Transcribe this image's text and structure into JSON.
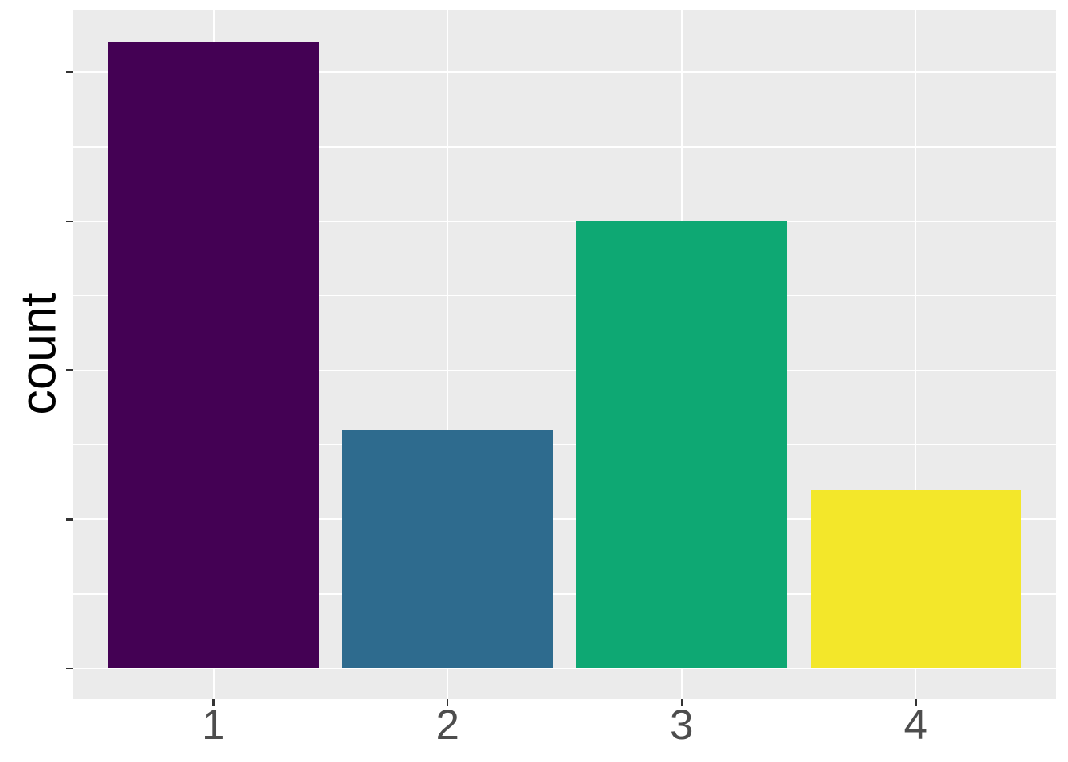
{
  "chart_data": {
    "type": "bar",
    "title": "",
    "xlabel": "",
    "ylabel": "count",
    "categories": [
      "1",
      "2",
      "3",
      "4"
    ],
    "values": [
      21,
      8,
      15,
      6
    ],
    "bar_colors": [
      "#440154",
      "#2E6B8E",
      "#0EA873",
      "#F3E72A"
    ],
    "ylim": [
      0,
      22.05
    ],
    "y_major_gridline_values": [
      0,
      5,
      10,
      15,
      20
    ],
    "y_minor_gridline_values": [
      2.5,
      7.5,
      12.5,
      17.5
    ],
    "y_tick_labels": "none",
    "grid": true,
    "legend": "none",
    "note": "ggplot2-style chart; y-axis has tick marks but no numeric labels, values estimated from gridline spacing"
  },
  "style": {
    "panel_bg": "#EBEBEB",
    "grid_color": "#FFFFFF",
    "tick_color": "#333333",
    "axis_text_color": "#4D4D4D",
    "axis_title_color": "#000000",
    "figure_bg": "#FFFFFF"
  }
}
